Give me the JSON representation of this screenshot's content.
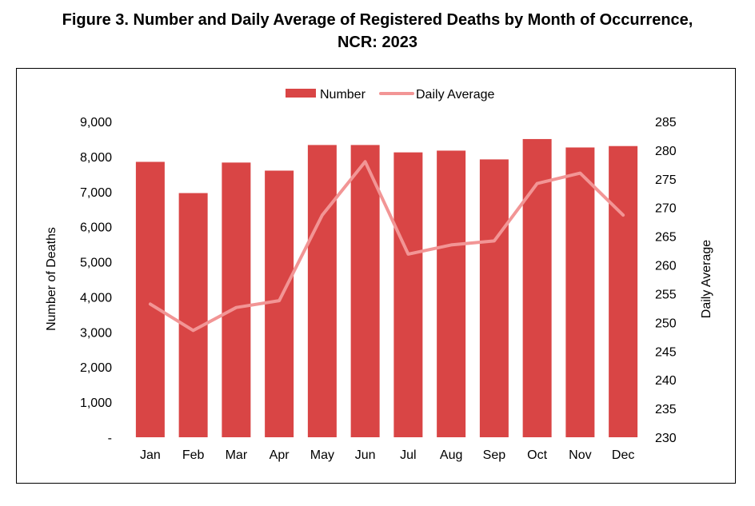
{
  "title": {
    "line1": "Figure 3. Number and Daily Average of Registered Deaths by Month of Occurrence,",
    "line2": "NCR: 2023"
  },
  "colors": {
    "bar": "#d94545",
    "line": "#f29595"
  },
  "chart_data": {
    "type": "bar",
    "categories": [
      "Jan",
      "Feb",
      "Mar",
      "Apr",
      "May",
      "Jun",
      "Jul",
      "Aug",
      "Sep",
      "Oct",
      "Nov",
      "Dec"
    ],
    "series": [
      {
        "name": "Number",
        "type": "bar",
        "axis": "left",
        "values": [
          7850,
          6960,
          7830,
          7600,
          8330,
          8330,
          8120,
          8170,
          7920,
          8500,
          8260,
          8300
        ]
      },
      {
        "name": "Daily Average",
        "type": "line",
        "axis": "right",
        "values": [
          253.2,
          248.6,
          252.6,
          253.8,
          268.7,
          278.0,
          261.9,
          263.5,
          264.2,
          274.2,
          276.0,
          268.7
        ]
      }
    ],
    "ylabel": "Number of Deaths",
    "y2label": "Daily Average",
    "ylim": [
      0,
      9000
    ],
    "y2lim": [
      230,
      285
    ],
    "yticks": [
      "-",
      "1,000",
      "2,000",
      "3,000",
      "4,000",
      "5,000",
      "6,000",
      "7,000",
      "8,000",
      "9,000"
    ],
    "y2ticks": [
      "230",
      "235",
      "240",
      "245",
      "250",
      "255",
      "260",
      "265",
      "270",
      "275",
      "280",
      "285"
    ],
    "legend": "top",
    "grid": false
  }
}
